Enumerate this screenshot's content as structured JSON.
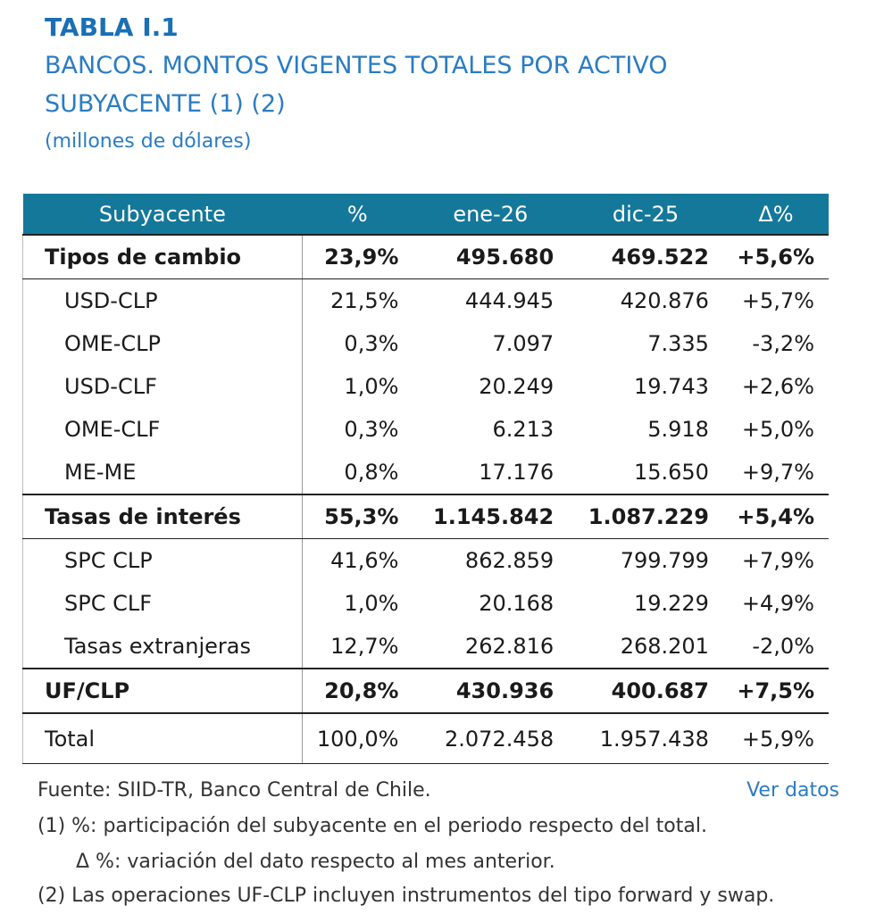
{
  "header": {
    "title": "TABLA I.1",
    "subtitle_lines": [
      "BANCOS. MONTOS VIGENTES TOTALES POR ACTIVO",
      "SUBYACENTE (1) (2)"
    ],
    "units": "(millones de dólares)"
  },
  "table": {
    "columns": [
      "Subyacente",
      "%",
      "ene-26",
      "dic-25",
      "Δ%"
    ],
    "groups": [
      {
        "row": [
          "Tipos de cambio",
          "23,9%",
          "495.680",
          "469.522",
          "+5,6%"
        ],
        "items": [
          [
            "USD-CLP",
            "21,5%",
            "444.945",
            "420.876",
            "+5,7%"
          ],
          [
            "OME-CLP",
            "0,3%",
            "7.097",
            "7.335",
            "-3,2%"
          ],
          [
            "USD-CLF",
            "1,0%",
            "20.249",
            "19.743",
            "+2,6%"
          ],
          [
            "OME-CLF",
            "0,3%",
            "6.213",
            "5.918",
            "+5,0%"
          ],
          [
            "ME-ME",
            "0,8%",
            "17.176",
            "15.650",
            "+9,7%"
          ]
        ]
      },
      {
        "row": [
          "Tasas de interés",
          "55,3%",
          "1.145.842",
          "1.087.229",
          "+5,4%"
        ],
        "items": [
          [
            "SPC CLP",
            "41,6%",
            "862.859",
            "799.799",
            "+7,9%"
          ],
          [
            "SPC CLF",
            "1,0%",
            "20.168",
            "19.229",
            "+4,9%"
          ],
          [
            "Tasas extranjeras",
            "12,7%",
            "262.816",
            "268.201",
            "-2,0%"
          ]
        ]
      },
      {
        "row": [
          "UF/CLP",
          "20,8%",
          "430.936",
          "400.687",
          "+7,5%"
        ],
        "items": []
      }
    ],
    "total": [
      "Total",
      "100,0%",
      "2.072.458",
      "1.957.438",
      "+5,9%"
    ]
  },
  "footer": {
    "source": "Fuente: SIID-TR, Banco Central de Chile.",
    "link": "Ver datos",
    "notes": [
      "(1) %: participación del subyacente en el periodo respecto del total.",
      "Δ %: variación del dato respecto al mes anterior.",
      "(2) Las operaciones UF-CLP incluyen instrumentos del tipo forward y swap."
    ]
  }
}
